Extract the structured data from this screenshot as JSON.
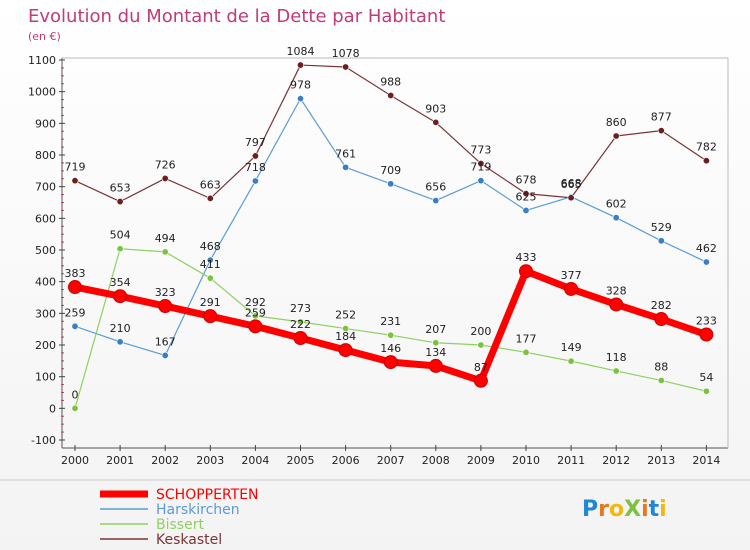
{
  "chart_data": {
    "type": "line",
    "title": "Evolution du Montant de la Dette par Habitant",
    "subtitle": "(en €)",
    "x": [
      "2000",
      "2001",
      "2002",
      "2003",
      "2004",
      "2005",
      "2006",
      "2007",
      "2008",
      "2009",
      "2010",
      "2011",
      "2012",
      "2013",
      "2014"
    ],
    "ylim": [
      -100,
      1100
    ],
    "yticks": [
      -100,
      0,
      100,
      200,
      300,
      400,
      500,
      600,
      700,
      800,
      900,
      1000,
      1100
    ],
    "grid": false,
    "legend_placement": "bottom-left",
    "series": [
      {
        "name": "SCHOPPERTEN",
        "color": "#ff0000",
        "point_color": "#ff0000",
        "line_style": "thick",
        "values": [
          383,
          354,
          323,
          291,
          259,
          222,
          184,
          146,
          134,
          87,
          433,
          377,
          328,
          282,
          233
        ],
        "labels": [
          "383",
          "354",
          "323",
          "291",
          "259",
          "222",
          "184",
          "146",
          "134",
          "87",
          "433",
          "377",
          "328",
          "282",
          "233"
        ]
      },
      {
        "name": "Harskirchen",
        "color": "#5b9bd5",
        "point_color": "#3a7fc4",
        "line_style": "thin",
        "values": [
          259,
          210,
          167,
          468,
          718,
          978,
          761,
          709,
          656,
          719,
          625,
          668,
          602,
          529,
          462
        ],
        "labels": [
          "259",
          "210",
          "167",
          "468",
          "718",
          "978",
          "761",
          "709",
          "656",
          "719",
          "625",
          "668",
          "602",
          "529",
          "462"
        ]
      },
      {
        "name": "Bissert",
        "color": "#90d060",
        "point_color": "#7cc242",
        "line_style": "thin",
        "values": [
          0,
          504,
          494,
          411,
          292,
          273,
          252,
          231,
          207,
          200,
          177,
          149,
          118,
          88,
          54
        ],
        "labels": [
          "0",
          "504",
          "494",
          "411",
          "292",
          "273",
          "252",
          "231",
          "207",
          "200",
          "177",
          "149",
          "118",
          "88",
          "54"
        ]
      },
      {
        "name": "Keskastel",
        "color": "#7a3434",
        "point_color": "#6b1f1f",
        "line_style": "thin",
        "values": [
          719,
          653,
          726,
          663,
          797,
          1084,
          1078,
          988,
          903,
          773,
          678,
          665,
          860,
          877,
          782
        ],
        "labels": [
          "719",
          "653",
          "726",
          "663",
          "797",
          "1084",
          "1078",
          "988",
          "903",
          "773",
          "678",
          "665",
          "860",
          "877",
          "782"
        ]
      }
    ]
  },
  "logo": {
    "text": "ProXiti",
    "letters": [
      "P",
      "r",
      "o",
      "X",
      "i",
      "t",
      "i"
    ],
    "colors": [
      "#1e88d8",
      "#e8781e",
      "#f2b90c",
      "#7cc242",
      "#e8781e",
      "#1e88d8",
      "#f2b90c"
    ]
  },
  "colors": {
    "title": "#c23a7a",
    "axis": "#333333"
  }
}
